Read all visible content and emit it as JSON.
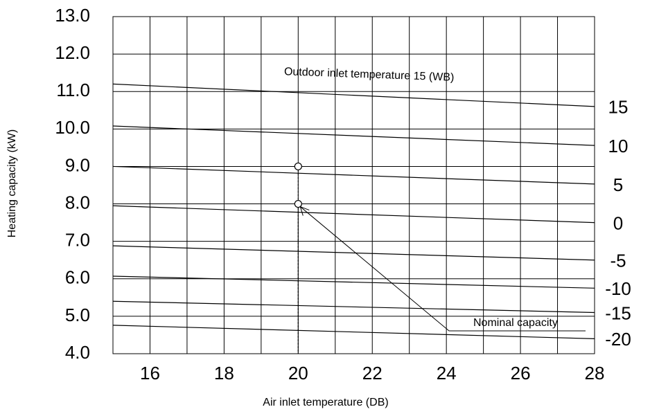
{
  "chart_data": {
    "type": "line",
    "ylabel": "Heating capacity (kW)",
    "xlabel": "Air inlet temperature (DB)",
    "annotation": "Outdoor inlet temperature 15 (WB)",
    "point_label": "Nominal capacity",
    "xlim": [
      15,
      28
    ],
    "ylim": [
      4,
      13
    ],
    "xticks": [
      16,
      18,
      20,
      22,
      24,
      26,
      28
    ],
    "xgrid": [
      15,
      16,
      17,
      18,
      19,
      20,
      21,
      22,
      23,
      24,
      25,
      26,
      27,
      28
    ],
    "yticks": [
      {
        "value": 4,
        "label": "4.0"
      },
      {
        "value": 5,
        "label": "5.0"
      },
      {
        "value": 6,
        "label": "6.0"
      },
      {
        "value": 7,
        "label": "7.0"
      },
      {
        "value": 8,
        "label": "8.0"
      },
      {
        "value": 9,
        "label": "9.0"
      },
      {
        "value": 10,
        "label": "10.0"
      },
      {
        "value": 11,
        "label": "11.0"
      },
      {
        "value": 12,
        "label": "12.0"
      },
      {
        "value": 13,
        "label": "13.0"
      }
    ],
    "grid": true,
    "color": "#000000",
    "x": [
      15,
      28
    ],
    "series": [
      {
        "name": "15",
        "color": "#000000",
        "values": [
          11.2,
          10.6
        ]
      },
      {
        "name": "10",
        "color": "#000000",
        "values": [
          10.08,
          9.56
        ]
      },
      {
        "name": "5",
        "color": "#000000",
        "values": [
          9.0,
          8.53
        ]
      },
      {
        "name": "0",
        "color": "#000000",
        "values": [
          7.95,
          7.5
        ]
      },
      {
        "name": "-5",
        "color": "#000000",
        "values": [
          6.88,
          6.5
        ]
      },
      {
        "name": "-10",
        "color": "#000000",
        "values": [
          6.07,
          5.75
        ]
      },
      {
        "name": "-15",
        "color": "#000000",
        "values": [
          5.4,
          5.1
        ]
      },
      {
        "name": "-20",
        "color": "#000000",
        "values": [
          4.76,
          4.4
        ]
      }
    ],
    "points": {
      "x": [
        20,
        20
      ],
      "y": [
        9.0,
        8.0
      ]
    }
  }
}
